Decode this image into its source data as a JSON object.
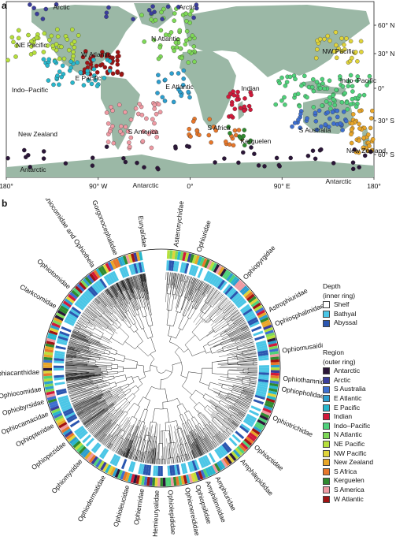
{
  "panel_a": {
    "letter": "a",
    "lat_ticks": [
      "60° N",
      "30° N",
      "0°",
      "30° S",
      "60° S"
    ],
    "lon_ticks": [
      "180°",
      "90° W",
      "0°",
      "90° E",
      "180°"
    ],
    "region_labels": [
      "Arctic",
      "Arctic",
      "NE Pacific",
      "N Atlantic",
      "W Atlantic",
      "E Pacific",
      "Indo–Pacific",
      "E Atlantic",
      "Indian",
      "NW Pacific",
      "Indo–Pacific",
      "S America",
      "S Africa",
      "Kerguelen",
      "S Australia",
      "New Zealand",
      "New Zealand",
      "Antarctic",
      "Antarctic",
      "Antarctic"
    ],
    "colors": {
      "land": "#9bb8a6",
      "ocean": "#ffffff"
    }
  },
  "panel_b": {
    "letter": "b",
    "families": [
      "Euryalidae",
      "Asteronychidae",
      "Ophiuridae",
      "Gorgonocephalidae",
      "Ophiocomidae and Ophiothela",
      "Ophiotomidae",
      "Clarkcomidae",
      "Ophiopyrgidae",
      "Astrophiuridae",
      "Ophiosphalmidae",
      "Ophiomusaidae",
      "Ophiothamnidae",
      "Ophiopholidae",
      "Ophiotrichidae",
      "Ophiactidae",
      "Amphilepididae",
      "Amphiuridae",
      "Ophiacanthidae",
      "Ophiopteridae",
      "Ophiocamacidae",
      "Ophiobyrsidae",
      "Ophiocomidae",
      "Ophiopezidae",
      "Ophiomyxidae",
      "Ophiodermatidae",
      "Ophioleucidae",
      "Ophiernidae",
      "Hemieuryalidae",
      "Ophiolepididae",
      "Ophionereididae",
      "Ophiopsilidae",
      "Amphilimnidae"
    ],
    "legend": {
      "depth_title": "Depth",
      "depth_subtitle": "(inner ring)",
      "depth": [
        {
          "label": "Shelf",
          "color": "#ffffff"
        },
        {
          "label": "Bathyal",
          "color": "#4bc6e6"
        },
        {
          "label": "Abyssal",
          "color": "#2b56b0"
        }
      ],
      "region_title": "Region",
      "region_subtitle": "(outer ring)",
      "regions": [
        {
          "label": "Antarctic",
          "color": "#2b1638"
        },
        {
          "label": "Arctic",
          "color": "#3a3d9c"
        },
        {
          "label": "S Australia",
          "color": "#3d6fd0"
        },
        {
          "label": "E Atlantic",
          "color": "#2d9fcf"
        },
        {
          "label": "E Pacific",
          "color": "#28b7cc"
        },
        {
          "label": "Indian",
          "color": "#d2193a"
        },
        {
          "label": "Indo–Pacific",
          "color": "#4fd17a"
        },
        {
          "label": "N Atlantic",
          "color": "#7ed957"
        },
        {
          "label": "NE Pacific",
          "color": "#b6df3c"
        },
        {
          "label": "NW Pacific",
          "color": "#e0d43a"
        },
        {
          "label": "New Zealand",
          "color": "#e9a628"
        },
        {
          "label": "S Africa",
          "color": "#e7772a"
        },
        {
          "label": "Kerguelen",
          "color": "#2f8a2f"
        },
        {
          "label": "S America",
          "color": "#ef9aa3"
        },
        {
          "label": "W Atlantic",
          "color": "#a11313"
        }
      ]
    }
  }
}
